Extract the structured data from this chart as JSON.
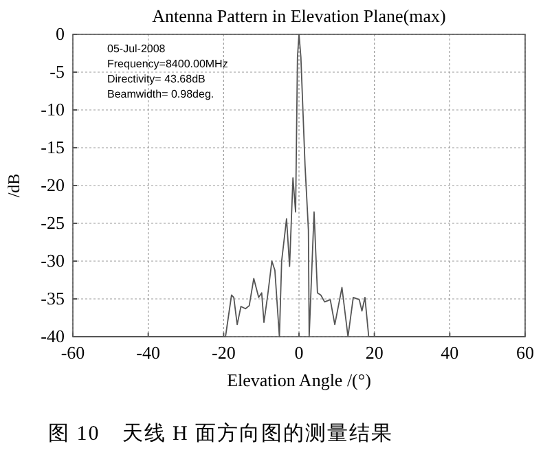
{
  "chart_data": {
    "type": "line",
    "title": "Antenna Pattern in Elevation Plane(max)",
    "xlabel": "Elevation Angle /(°)",
    "ylabel": "/dB",
    "annotations": [
      "05-Jul-2008",
      "Frequency=8400.00MHz",
      "Directivity= 43.68dB",
      "Beamwidth=  0.98deg.",
      "图 10　天线 H 面方向图的测量结果"
    ],
    "xlim": [
      -60,
      60
    ],
    "xticks": [
      -60,
      -40,
      -20,
      0,
      20,
      40,
      60
    ],
    "ylim": [
      -40,
      0
    ],
    "yticks": [
      0,
      -5,
      -10,
      -15,
      -20,
      -25,
      -30,
      -35,
      -40
    ],
    "grid": true,
    "line_style": "solid",
    "marker": "none",
    "series": [
      {
        "color": "#555555",
        "x": [
          -60,
          -19.5,
          -17.9,
          -17.3,
          -16.4,
          -15.4,
          -14.2,
          -13.2,
          -12,
          -10.7,
          -9.9,
          -9.3,
          -8.3,
          -7.2,
          -6.4,
          -5.2,
          -4.6,
          -3.3,
          -2.5,
          -1.6,
          -0.9,
          -0.4,
          0,
          0.5,
          1.6,
          2.5,
          2.7,
          4,
          4.9,
          5.8,
          6.8,
          8.3,
          9.5,
          11.4,
          13,
          14.4,
          16,
          16.7,
          17.5,
          18.5,
          60
        ],
        "values": [
          -40,
          -40,
          -34.5,
          -34.8,
          -38.4,
          -36,
          -36.3,
          -35.9,
          -32.3,
          -34.8,
          -34.2,
          -38.1,
          -34.5,
          -30,
          -31.2,
          -40,
          -30,
          -24.4,
          -30.7,
          -19,
          -23.5,
          -3,
          0,
          -3,
          -17.3,
          -25.9,
          -40,
          -23.5,
          -34.2,
          -34.5,
          -35.4,
          -35.1,
          -38.4,
          -33.5,
          -40,
          -34.8,
          -35.1,
          -36.6,
          -34.8,
          -40,
          -40
        ]
      }
    ]
  }
}
